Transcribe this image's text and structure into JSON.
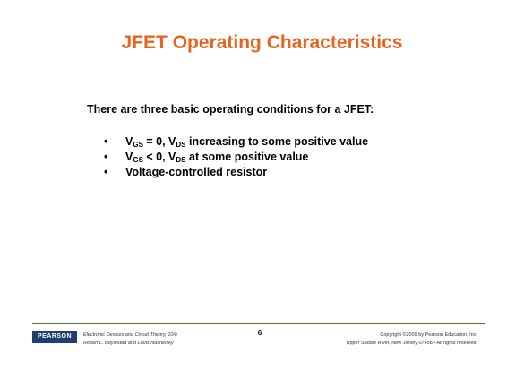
{
  "slide": {
    "title": "JFET Operating Characteristics",
    "intro": "There are three basic operating conditions for a JFET:",
    "bullet_glyph": "•",
    "bullets": {
      "b1": {
        "v1": "V",
        "s1": "GS",
        "t1": " = 0, V",
        "s2": "DS",
        "t2": " increasing to some positive value"
      },
      "b2": {
        "v1": "V",
        "s1": "GS",
        "t1": " < 0, V",
        "s2": "DS",
        "t2": " at some positive value"
      },
      "b3": {
        "text": "Voltage-controlled resistor"
      }
    }
  },
  "footer": {
    "logo": "PEARSON",
    "book_line1": "Electronic Devices and Circuit Theory, 10/e",
    "book_line2": "Robert L. Boylestad and Louis Nashelsky",
    "page_number": "6",
    "copyright_line1": "Copyright ©2009 by Pearson Education, Inc.",
    "copyright_line2": "Upper Saddle River, New Jersey 07458 • All rights reserved."
  },
  "colors": {
    "title": "#e8641e",
    "rule": "#4a7a2a",
    "logo_bg": "#1f3f70"
  }
}
